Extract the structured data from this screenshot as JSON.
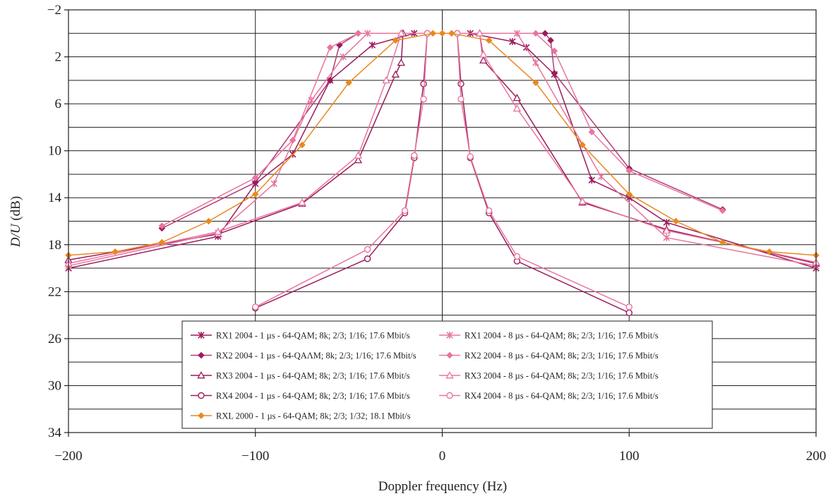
{
  "chart_data": {
    "type": "line",
    "title": "",
    "xlabel": "Doppler frequency (Hz)",
    "ylabel_italic_part": "D/U",
    "ylabel_rest": " (dB)",
    "xlim": [
      -200,
      200
    ],
    "ylim": [
      -2,
      34
    ],
    "y_inverted": true,
    "x_ticks": [
      -200,
      -100,
      0,
      100,
      200
    ],
    "x_tick_labels": [
      "−200",
      "−100",
      "0",
      "100",
      "200"
    ],
    "y_ticks": [
      -2,
      2,
      6,
      10,
      14,
      18,
      22,
      26,
      30,
      34
    ],
    "y_tick_labels": [
      "−2",
      "2",
      "6",
      "10",
      "14",
      "18",
      "22",
      "26",
      "30",
      "34"
    ],
    "y_gridlines": [
      -2,
      0,
      2,
      4,
      6,
      8,
      10,
      12,
      14,
      16,
      18,
      20,
      22,
      24,
      26,
      28,
      30,
      32,
      34
    ],
    "x_gridlines": [
      -200,
      -100,
      0,
      100,
      200
    ],
    "grid": true,
    "legend_position": "bottom-center",
    "series": [
      {
        "name": "RX1 2004 - 1 µs - 64-QAM; 8k; 2/3; 1/16; 17.6 Mbit/s",
        "color": "#9b1b5d",
        "marker": "asterisk",
        "x": [
          -200,
          -120,
          -100,
          -80,
          -60,
          -37.5,
          -15,
          15,
          37.5,
          45,
          60,
          80,
          100,
          120,
          200
        ],
        "y": [
          20,
          17.3,
          12.8,
          10.3,
          4,
          1,
          0,
          0,
          0.7,
          1.2,
          3.5,
          12.5,
          14,
          16.1,
          20
        ]
      },
      {
        "name": "RX2 2004 - 1 µs - 64-QAΛM; 8k; 2/3; 1/16; 17.6 Mbit/s",
        "color": "#9b1b5d",
        "marker": "diamond",
        "x": [
          -150,
          -100,
          -60,
          -55,
          -45,
          55,
          58,
          60,
          100,
          150
        ],
        "y": [
          16.6,
          12.7,
          4,
          1,
          0,
          0,
          0.6,
          3.4,
          11.5,
          15
        ],
        "line_color": "#b23a7a"
      },
      {
        "name": "RX3 2004 - 1 µs - 64-QAM; 8k; 2/3; 1/16; 17.6 Mbit/s",
        "color": "#9b1b5d",
        "marker": "triangle",
        "x": [
          -200,
          -120,
          -75,
          -45,
          -25,
          -22,
          -21,
          20,
          22,
          40,
          75,
          120,
          200
        ],
        "y": [
          19.3,
          17.1,
          14.5,
          10.8,
          3.5,
          2.5,
          0,
          0,
          2.3,
          5.5,
          14.4,
          16.7,
          19.6
        ]
      },
      {
        "name": "RX4 2004 - 1 µs - 64-QAM; 8k; 2/3; 1/16; 17.6 Mbit/s",
        "color": "#9b1b5d",
        "marker": "circle",
        "x": [
          -100,
          -40,
          -20,
          -15,
          -10,
          -8,
          8,
          10,
          15,
          25,
          40,
          100
        ],
        "y": [
          23.4,
          19.2,
          15.3,
          10.6,
          4.3,
          0,
          0,
          4.3,
          10.6,
          15.3,
          19.4,
          23.8
        ]
      },
      {
        "name": "RX1 2004 - 8 µs - 64-QAM; 8k; 2/3; 1/16; 17.6 Mbit/s",
        "color": "#e8759e",
        "marker": "asterisk",
        "x": [
          -200,
          -120,
          -90,
          -70,
          -53,
          -40,
          40,
          50,
          85,
          120,
          200
        ],
        "y": [
          19.8,
          17,
          12.8,
          5.7,
          2,
          0,
          0,
          2.5,
          12.2,
          17.4,
          19.8
        ]
      },
      {
        "name": "RX2 2004 - 8 µs - 64-QAM; 8k; 2/3; 1/16; 17.6 Mbit/s",
        "color": "#e8759e",
        "marker": "diamond",
        "x": [
          -150,
          -100,
          -80,
          -60,
          -45,
          50,
          60,
          80,
          100,
          150
        ],
        "y": [
          16.4,
          12.3,
          9.1,
          1.2,
          0,
          0,
          1.5,
          8.4,
          11.7,
          15.1
        ]
      },
      {
        "name": "RX3 2004 - 8 µs - 64-QAM; 8k; 2/3; 1/16; 17.6 Mbit/s",
        "color": "#e8759e",
        "marker": "triangle",
        "x": [
          -200,
          -120,
          -75,
          -45,
          -30,
          -22,
          20,
          22,
          40,
          75,
          120,
          200
        ],
        "y": [
          19.6,
          16.9,
          14.4,
          10.4,
          4,
          0,
          0,
          1.8,
          6.4,
          14.3,
          16.8,
          19.5
        ]
      },
      {
        "name": "RX4 2004 - 8 µs - 64-QAM; 8k; 2/3; 1/16; 17.6 Mbit/s",
        "color": "#e8759e",
        "marker": "circle",
        "x": [
          -100,
          -40,
          -20,
          -15,
          -10,
          -8,
          8,
          10,
          15,
          25,
          40,
          100
        ],
        "y": [
          23.3,
          18.4,
          15.1,
          10.4,
          5.6,
          0,
          0,
          5.6,
          10.5,
          15.1,
          19,
          23.3
        ]
      },
      {
        "name": "RXL 2000 - 1 µs - 64-QAM; 8k; 2/3; 1/32; 18.1 Mbit/s",
        "color": "#e8891f",
        "marker": "diamond",
        "x": [
          -200,
          -175,
          -150,
          -125,
          -100,
          -75,
          -50,
          -25,
          -5,
          0,
          5,
          25,
          50,
          75,
          100,
          125,
          150,
          175,
          200
        ],
        "y": [
          18.9,
          18.6,
          17.8,
          16,
          13.7,
          9.5,
          4.2,
          0.6,
          0,
          0,
          0,
          0.6,
          4.2,
          9.5,
          13.7,
          16,
          17.8,
          18.6,
          18.9
        ]
      }
    ]
  }
}
